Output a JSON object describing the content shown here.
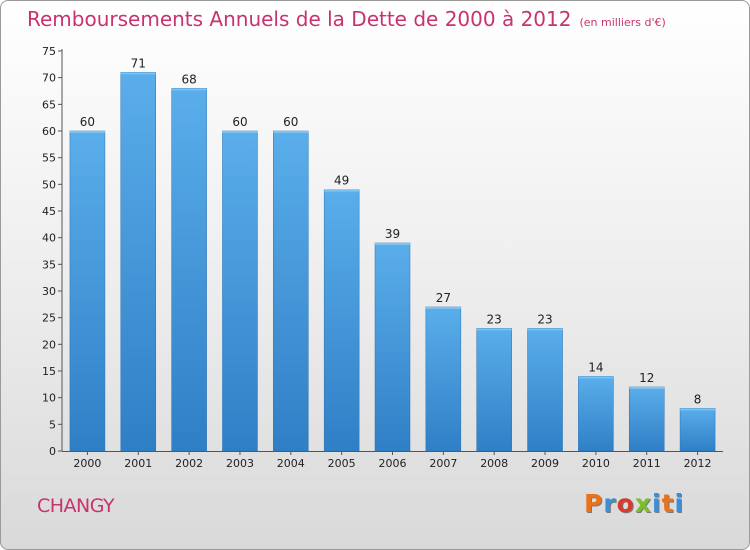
{
  "chart_data": {
    "type": "bar",
    "title": "Remboursements Annuels de la Dette de 2000 à 2012",
    "subtitle": "(en milliers d'€)",
    "categories": [
      "2000",
      "2001",
      "2002",
      "2003",
      "2004",
      "2005",
      "2006",
      "2007",
      "2008",
      "2009",
      "2010",
      "2011",
      "2012"
    ],
    "values": [
      60,
      71,
      68,
      60,
      60,
      49,
      39,
      27,
      23,
      23,
      14,
      12,
      8
    ],
    "xlabel": "",
    "ylabel": "",
    "ylim": [
      0,
      75
    ],
    "yticks": [
      0,
      5,
      10,
      15,
      20,
      25,
      30,
      35,
      40,
      45,
      50,
      55,
      60,
      65,
      70,
      75
    ],
    "grid": false,
    "bar_color": "#4a9fe0"
  },
  "footer": {
    "commune": "CHANGY",
    "logo": "Proxiti"
  },
  "colors": {
    "title": "#c8336f",
    "logo_letters": [
      "#e8731c",
      "#3a8fd8",
      "#d83a2e",
      "#7abf2a",
      "#3a8fd8",
      "#e8731c",
      "#3a8fd8"
    ]
  }
}
